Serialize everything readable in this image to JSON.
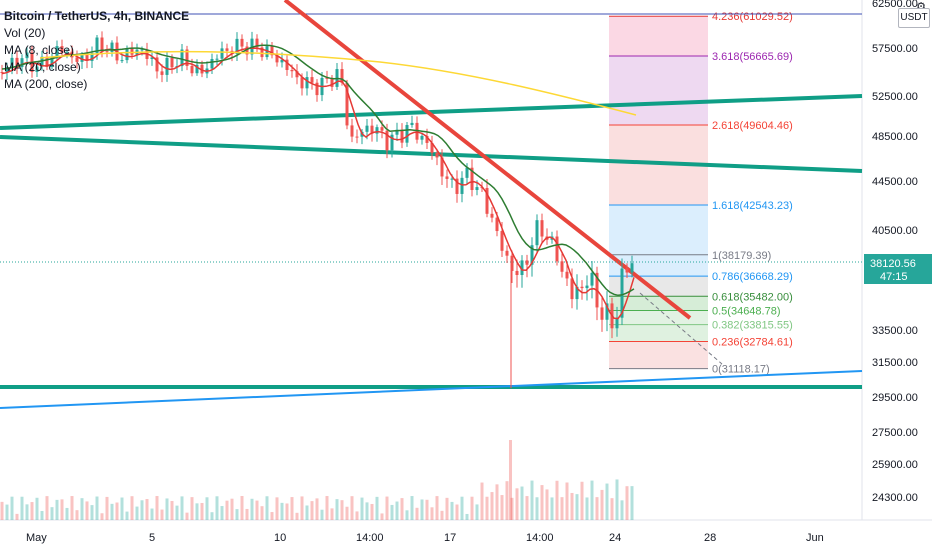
{
  "legend": {
    "title": "Bitcoin / TetherUS, 4h, BINANCE",
    "vol": "Vol (20)",
    "ma8": "MA (8, close)",
    "ma20": "MA (20, close)",
    "ma200": "MA (200, close)"
  },
  "currency": "USDT",
  "last_price": "38120.56",
  "countdown": "47:15",
  "colors": {
    "up": "#26a69a",
    "down": "#ef5350",
    "ma8": "#e53935",
    "ma20": "#2e7d32",
    "ma200": "#fdd835",
    "trend_red": "#e8453c",
    "teal_line": "#0f9e86",
    "blue_line": "#2196f3"
  },
  "chart_data": {
    "type": "candlestick",
    "y_axis": {
      "ticks": [
        "62500.00",
        "57500.00",
        "52500.00",
        "48500.00",
        "44500.00",
        "40500.00",
        "37500.00",
        "33500.00",
        "31500.00",
        "29500.00",
        "27500.00",
        "25900.00",
        "24300.00"
      ]
    },
    "x_axis": {
      "ticks": [
        "May",
        "5",
        "10",
        "14:00",
        "17",
        "14:00",
        "24",
        "28",
        "Jun"
      ]
    },
    "fibonacci": [
      {
        "level": "4.236",
        "price": "61029.52"
      },
      {
        "level": "3.618",
        "price": "56665.69"
      },
      {
        "level": "2.618",
        "price": "49604.46"
      },
      {
        "level": "1.618",
        "price": "42543.23"
      },
      {
        "level": "1",
        "price": "38179.39"
      },
      {
        "level": "0.786",
        "price": "36668.29"
      },
      {
        "level": "0.618",
        "price": "35482.00"
      },
      {
        "level": "0.5",
        "price": "34648.78"
      },
      {
        "level": "0.382",
        "price": "33815.55"
      },
      {
        "level": "0.236",
        "price": "32784.61"
      },
      {
        "level": "0",
        "price": "31118.17"
      }
    ]
  }
}
